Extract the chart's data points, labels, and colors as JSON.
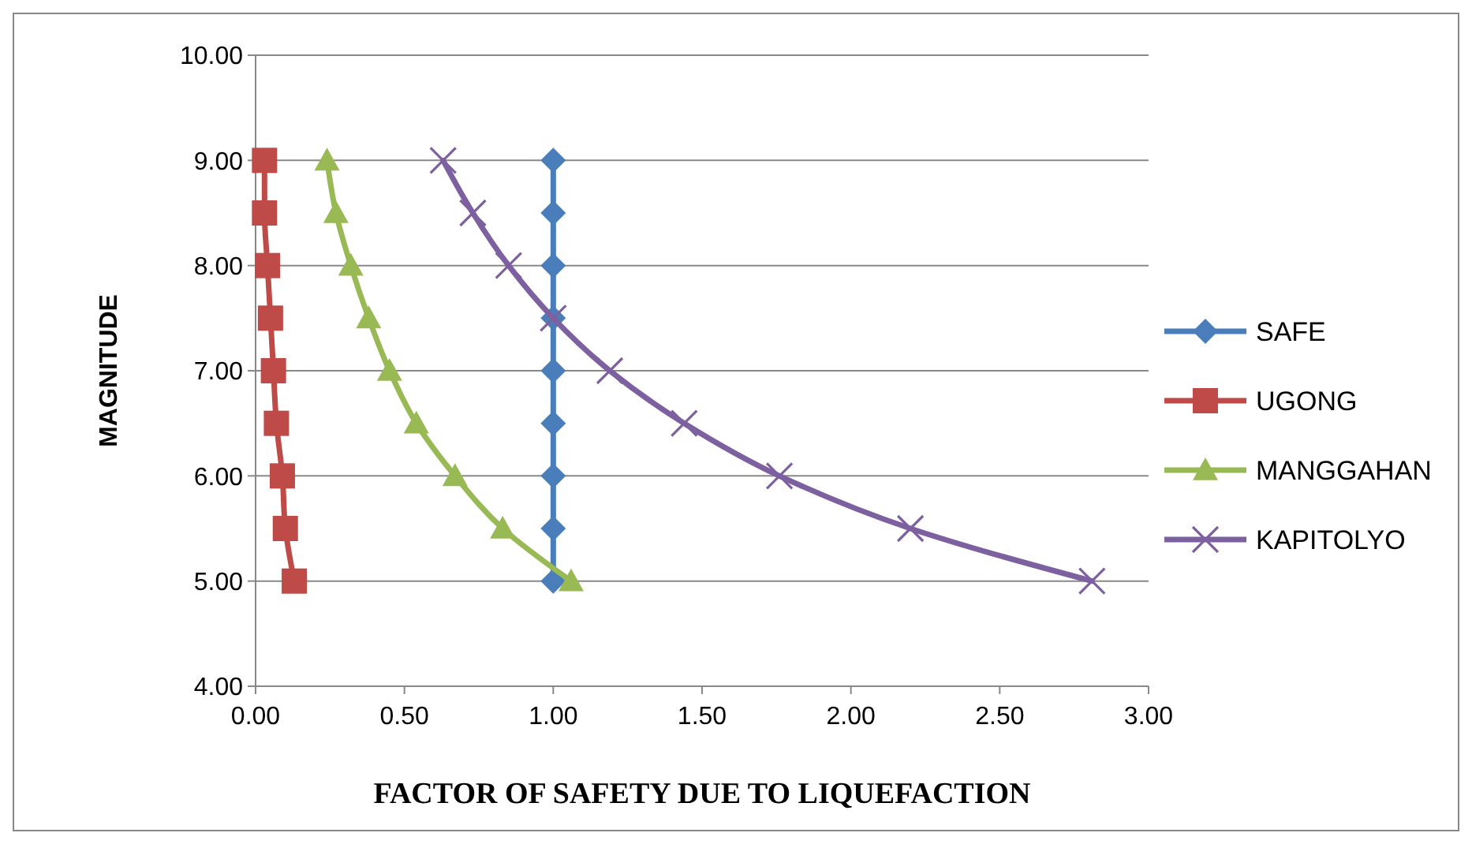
{
  "chart_data": {
    "type": "line",
    "xlabel": "FACTOR OF SAFETY DUE TO LIQUEFACTION",
    "ylabel": "MAGNITUDE",
    "xlim": [
      0,
      3
    ],
    "xticks": [
      {
        "value": 0,
        "label": "0.00"
      },
      {
        "value": 0.5,
        "label": "0.50"
      },
      {
        "value": 1,
        "label": "1.00"
      },
      {
        "value": 1.5,
        "label": "1.50"
      },
      {
        "value": 2,
        "label": "2.00"
      },
      {
        "value": 2.5,
        "label": "2.50"
      },
      {
        "value": 3,
        "label": "3.00"
      }
    ],
    "ylim": [
      4,
      10
    ],
    "yticks": [
      {
        "value": 4,
        "label": "4.00"
      },
      {
        "value": 5,
        "label": "5.00"
      },
      {
        "value": 6,
        "label": "6.00"
      },
      {
        "value": 7,
        "label": "7.00"
      },
      {
        "value": 8,
        "label": "8.00"
      },
      {
        "value": 9,
        "label": "9.00"
      },
      {
        "value": 10,
        "label": "10.00"
      }
    ],
    "grid": "y",
    "legend": "right",
    "series": [
      {
        "name": "SAFE",
        "color": "#4a7ebb",
        "marker": "diamond",
        "x": [
          1,
          1,
          1,
          1,
          1,
          1,
          1,
          1,
          1
        ],
        "values": [
          9,
          8.5,
          8,
          7.5,
          7,
          6.5,
          6,
          5.5,
          5
        ]
      },
      {
        "name": "UGONG",
        "color": "#be4b48",
        "marker": "square",
        "x": [
          0.03,
          0.03,
          0.04,
          0.05,
          0.06,
          0.07,
          0.09,
          0.1,
          0.13
        ],
        "values": [
          9,
          8.5,
          8,
          7.5,
          7,
          6.5,
          6,
          5.5,
          5
        ]
      },
      {
        "name": "MANGGAHAN",
        "color": "#98b954",
        "marker": "triangle",
        "x": [
          0.24,
          0.27,
          0.32,
          0.38,
          0.45,
          0.54,
          0.67,
          0.83,
          1.06
        ],
        "values": [
          9,
          8.5,
          8,
          7.5,
          7,
          6.5,
          6,
          5.5,
          5
        ]
      },
      {
        "name": "KAPITOLYO",
        "color": "#7d60a0",
        "marker": "cross",
        "x": [
          0.63,
          0.73,
          0.85,
          1.0,
          1.19,
          1.44,
          1.76,
          2.2,
          2.81
        ],
        "values": [
          9,
          8.5,
          8,
          7.5,
          7,
          6.5,
          6,
          5.5,
          5
        ]
      }
    ]
  }
}
